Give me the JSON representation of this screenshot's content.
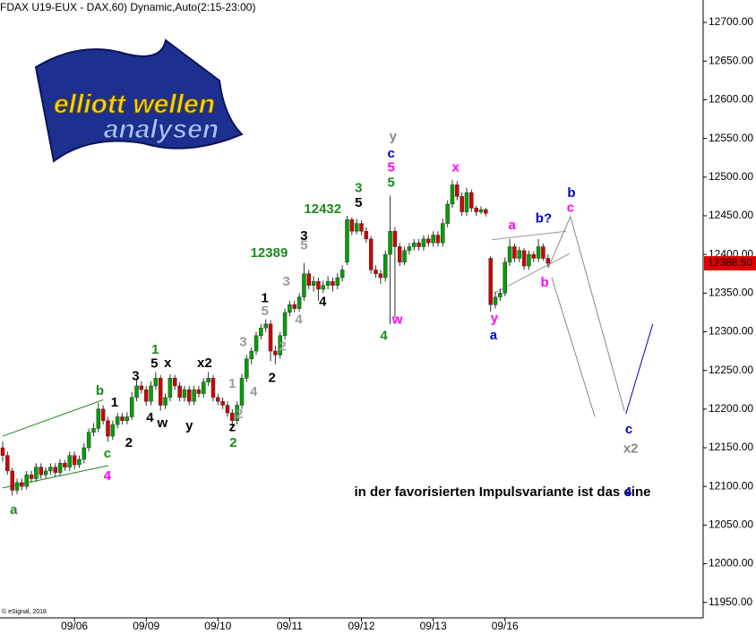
{
  "chart_data": {
    "type": "candlestick",
    "title": "FDAX U19-EUX - DAX,60) Dynamic,Auto(2:15-23:00)",
    "logo": [
      "elliott wellen",
      "analysen"
    ],
    "copyright": "© eSignal, 2018",
    "up_color": "#00a000",
    "down_color": "#d00000",
    "wick_color": "#333333",
    "ylim": [
      11930,
      12729
    ],
    "yticks": [
      {
        "value": 12700,
        "label": "12700.00"
      },
      {
        "value": 12650,
        "label": "12650.00"
      },
      {
        "value": 12600,
        "label": "12600.00"
      },
      {
        "value": 12550,
        "label": "12550.00"
      },
      {
        "value": 12500,
        "label": "12500.00"
      },
      {
        "value": 12450,
        "label": "12450.00"
      },
      {
        "value": 12400,
        "label": "12400.00"
      },
      {
        "value": 12350,
        "label": "12350.00"
      },
      {
        "value": 12300,
        "label": "12300.00"
      },
      {
        "value": 12250,
        "label": "12250.00"
      },
      {
        "value": 12200,
        "label": "12200.00"
      },
      {
        "value": 12150,
        "label": "12150.00"
      },
      {
        "value": 12100,
        "label": "12100.00"
      },
      {
        "value": 12050,
        "label": "12050.00"
      },
      {
        "value": 12000,
        "label": "12000.00"
      },
      {
        "value": 11950,
        "label": "11950.00"
      }
    ],
    "xlim": [
      0,
      147
    ],
    "xticks": [
      {
        "value": 15,
        "label": "09/06"
      },
      {
        "value": 30,
        "label": "09/09"
      },
      {
        "value": 45,
        "label": "09/10"
      },
      {
        "value": 60,
        "label": "09/11"
      },
      {
        "value": 75,
        "label": "09/12"
      },
      {
        "value": 90,
        "label": "09/13"
      },
      {
        "value": 105,
        "label": "09/16"
      }
    ],
    "last_price": {
      "value": 12388.5,
      "label": "12388.50",
      "color": "#e00000"
    },
    "candles": [
      [
        12150,
        12158,
        12132,
        12140
      ],
      [
        12140,
        12145,
        12115,
        12120
      ],
      [
        12120,
        12124,
        12088,
        12095
      ],
      [
        12095,
        12110,
        12090,
        12105
      ],
      [
        12105,
        12110,
        12095,
        12100
      ],
      [
        12100,
        12120,
        12096,
        12115
      ],
      [
        12115,
        12120,
        12105,
        12110
      ],
      [
        12110,
        12130,
        12106,
        12125
      ],
      [
        12125,
        12130,
        12110,
        12115
      ],
      [
        12115,
        12125,
        12110,
        12120
      ],
      [
        12120,
        12130,
        12115,
        12125
      ],
      [
        12125,
        12130,
        12113,
        12118
      ],
      [
        12118,
        12135,
        12114,
        12130
      ],
      [
        12130,
        12134,
        12120,
        12125
      ],
      [
        12125,
        12145,
        12120,
        12140
      ],
      [
        12140,
        12145,
        12122,
        12128
      ],
      [
        12128,
        12140,
        12124,
        12135
      ],
      [
        12135,
        12156,
        12130,
        12150
      ],
      [
        12150,
        12175,
        12145,
        12170
      ],
      [
        12170,
        12182,
        12165,
        12175
      ],
      [
        12175,
        12208,
        12170,
        12200
      ],
      [
        12200,
        12205,
        12180,
        12185
      ],
      [
        12185,
        12190,
        12158,
        12165
      ],
      [
        12165,
        12185,
        12160,
        12180
      ],
      [
        12180,
        12195,
        12175,
        12190
      ],
      [
        12190,
        12195,
        12180,
        12185
      ],
      [
        12185,
        12196,
        12180,
        12190
      ],
      [
        12190,
        12222,
        12186,
        12215
      ],
      [
        12215,
        12238,
        12210,
        12230
      ],
      [
        12230,
        12236,
        12220,
        12225
      ],
      [
        12225,
        12230,
        12204,
        12210
      ],
      [
        12210,
        12236,
        12205,
        12230
      ],
      [
        12230,
        12248,
        12225,
        12240
      ],
      [
        12240,
        12244,
        12198,
        12205
      ],
      [
        12205,
        12220,
        12200,
        12215
      ],
      [
        12215,
        12245,
        12210,
        12240
      ],
      [
        12240,
        12244,
        12225,
        12230
      ],
      [
        12230,
        12235,
        12210,
        12215
      ],
      [
        12215,
        12230,
        12210,
        12225
      ],
      [
        12225,
        12230,
        12205,
        12210
      ],
      [
        12210,
        12230,
        12205,
        12225
      ],
      [
        12225,
        12230,
        12215,
        12220
      ],
      [
        12220,
        12240,
        12215,
        12235
      ],
      [
        12235,
        12248,
        12230,
        12240
      ],
      [
        12240,
        12244,
        12210,
        12215
      ],
      [
        12215,
        12220,
        12205,
        12210
      ],
      [
        12210,
        12215,
        12200,
        12205
      ],
      [
        12205,
        12210,
        12190,
        12195
      ],
      [
        12195,
        12200,
        12178,
        12185
      ],
      [
        12185,
        12210,
        12180,
        12205
      ],
      [
        12205,
        12245,
        12200,
        12240
      ],
      [
        12240,
        12270,
        12235,
        12265
      ],
      [
        12265,
        12280,
        12258,
        12275
      ],
      [
        12275,
        12300,
        12270,
        12295
      ],
      [
        12295,
        12310,
        12290,
        12305
      ],
      [
        12305,
        12316,
        12300,
        12310
      ],
      [
        12310,
        12315,
        12262,
        12275
      ],
      [
        12275,
        12282,
        12258,
        12270
      ],
      [
        12270,
        12300,
        12265,
        12295
      ],
      [
        12295,
        12330,
        12290,
        12325
      ],
      [
        12325,
        12340,
        12320,
        12335
      ],
      [
        12335,
        12340,
        12325,
        12330
      ],
      [
        12330,
        12350,
        12326,
        12345
      ],
      [
        12345,
        12389,
        12340,
        12375
      ],
      [
        12375,
        12380,
        12355,
        12360
      ],
      [
        12360,
        12372,
        12352,
        12365
      ],
      [
        12365,
        12370,
        12340,
        12355
      ],
      [
        12355,
        12366,
        12350,
        12360
      ],
      [
        12360,
        12372,
        12355,
        12365
      ],
      [
        12365,
        12370,
        12352,
        12360
      ],
      [
        12360,
        12376,
        12355,
        12370
      ],
      [
        12370,
        12386,
        12365,
        12380
      ],
      [
        12390,
        12450,
        12386,
        12445
      ],
      [
        12445,
        12448,
        12425,
        12430
      ],
      [
        12430,
        12446,
        12426,
        12440
      ],
      [
        12440,
        12444,
        12425,
        12430
      ],
      [
        12430,
        12435,
        12415,
        12420
      ],
      [
        12420,
        12424,
        12375,
        12380
      ],
      [
        12380,
        12386,
        12370,
        12375
      ],
      [
        12375,
        12380,
        12362,
        12370
      ],
      [
        12370,
        12405,
        12365,
        12400
      ],
      [
        12400,
        12476,
        12310,
        12430
      ],
      [
        12430,
        12435,
        12318,
        12410
      ],
      [
        12410,
        12415,
        12385,
        12390
      ],
      [
        12390,
        12410,
        12386,
        12405
      ],
      [
        12405,
        12415,
        12400,
        12410
      ],
      [
        12410,
        12420,
        12405,
        12415
      ],
      [
        12415,
        12420,
        12405,
        12410
      ],
      [
        12410,
        12425,
        12405,
        12420
      ],
      [
        12420,
        12425,
        12410,
        12415
      ],
      [
        12415,
        12430,
        12410,
        12425
      ],
      [
        12425,
        12430,
        12410,
        12415
      ],
      [
        12415,
        12446,
        12410,
        12440
      ],
      [
        12440,
        12470,
        12435,
        12465
      ],
      [
        12465,
        12496,
        12460,
        12490
      ],
      [
        12490,
        12495,
        12470,
        12475
      ],
      [
        12475,
        12480,
        12450,
        12455
      ],
      [
        12455,
        12486,
        12450,
        12480
      ],
      [
        12480,
        12484,
        12455,
        12460
      ],
      [
        12460,
        12463,
        12450,
        12455
      ],
      [
        12455,
        12462,
        12452,
        12458
      ],
      [
        12458,
        12460,
        12449,
        12453
      ],
      [
        12395,
        12398,
        12326,
        12335
      ],
      [
        12335,
        12352,
        12330,
        12345
      ],
      [
        12345,
        12356,
        12340,
        12350
      ],
      [
        12350,
        12396,
        12346,
        12390
      ],
      [
        12390,
        12420,
        12385,
        12410
      ],
      [
        12410,
        12414,
        12390,
        12395
      ],
      [
        12395,
        12410,
        12390,
        12405
      ],
      [
        12405,
        12408,
        12380,
        12385
      ],
      [
        12385,
        12405,
        12380,
        12400
      ],
      [
        12400,
        12404,
        12390,
        12395
      ],
      [
        12395,
        12420,
        12390,
        12410
      ],
      [
        12410,
        12414,
        12392,
        12395
      ],
      [
        12395,
        12400,
        12384,
        12388.5
      ]
    ],
    "lines": [
      {
        "color": "#1a8a1a",
        "points": [
          [
            0,
            12165
          ],
          [
            21,
            12212
          ]
        ]
      },
      {
        "color": "#1a8a1a",
        "points": [
          [
            0,
            12098
          ],
          [
            22.1,
            12127
          ]
        ]
      },
      {
        "color": "#999999",
        "points": [
          [
            102.2,
            12419
          ],
          [
            117.8,
            12430
          ]
        ]
      },
      {
        "color": "#999999",
        "points": [
          [
            102.8,
            12350
          ],
          [
            118.5,
            12401
          ]
        ]
      },
      {
        "color": "#888888",
        "points": [
          [
            114,
            12382
          ],
          [
            118.7,
            12449
          ],
          [
            130,
            12197
          ]
        ]
      },
      {
        "color": "#888888",
        "points": [
          [
            114.8,
            12370
          ],
          [
            123.8,
            12190
          ]
        ]
      },
      {
        "color": "#0000cc",
        "points": [
          [
            130.3,
            12194
          ],
          [
            135.9,
            12310
          ]
        ]
      }
    ],
    "annotations": [
      {
        "text": "a",
        "color": "#1a8a1a",
        "x": 2.3,
        "y": 12069
      },
      {
        "text": "b",
        "color": "#1a8a1a",
        "x": 20.3,
        "y": 12223
      },
      {
        "text": "c",
        "color": "#1a8a1a",
        "x": 21.9,
        "y": 12142
      },
      {
        "text": "4",
        "color": "#ff00ff",
        "x": 21.9,
        "y": 12113
      },
      {
        "text": "1",
        "color": "#000000",
        "x": 23.4,
        "y": 12208
      },
      {
        "text": "2",
        "color": "#000000",
        "x": 26.4,
        "y": 12156
      },
      {
        "text": "3",
        "color": "#000000",
        "x": 27.8,
        "y": 12242
      },
      {
        "text": "1",
        "color": "#1a8a1a",
        "x": 31.9,
        "y": 12276
      },
      {
        "text": "5",
        "color": "#000000",
        "x": 31.7,
        "y": 12258
      },
      {
        "text": "x",
        "color": "#000000",
        "x": 34.5,
        "y": 12259
      },
      {
        "text": "4",
        "color": "#000000",
        "x": 30.8,
        "y": 12188
      },
      {
        "text": "w",
        "color": "#000000",
        "x": 33.4,
        "y": 12181
      },
      {
        "text": "y",
        "color": "#000000",
        "x": 39,
        "y": 12178
      },
      {
        "text": "x2",
        "color": "#000000",
        "x": 42.2,
        "y": 12259
      },
      {
        "text": "z",
        "color": "#000000",
        "x": 48,
        "y": 12176
      },
      {
        "text": "2",
        "color": "#1a8a1a",
        "x": 48.2,
        "y": 12156
      },
      {
        "text": "1",
        "color": "#999999",
        "x": 48,
        "y": 12232
      },
      {
        "text": "2",
        "color": "#999999",
        "x": 49.5,
        "y": 12193
      },
      {
        "text": "3",
        "color": "#999999",
        "x": 50.3,
        "y": 12286
      },
      {
        "text": "4",
        "color": "#999999",
        "x": 52.5,
        "y": 12222
      },
      {
        "text": "5",
        "color": "#999999",
        "x": 54.8,
        "y": 12326
      },
      {
        "text": "1",
        "color": "#000000",
        "x": 54.8,
        "y": 12343
      },
      {
        "text": "2",
        "color": "#000000",
        "x": 56.3,
        "y": 12240
      },
      {
        "text": "2",
        "color": "#999999",
        "x": 58.5,
        "y": 12280
      },
      {
        "text": "3",
        "color": "#999999",
        "x": 59.3,
        "y": 12364
      },
      {
        "text": "4",
        "color": "#999999",
        "x": 61.9,
        "y": 12315
      },
      {
        "text": "5",
        "color": "#999999",
        "x": 63,
        "y": 12411
      },
      {
        "text": "3",
        "color": "#000000",
        "x": 63,
        "y": 12423
      },
      {
        "text": "4",
        "color": "#000000",
        "x": 66.9,
        "y": 12338
      },
      {
        "text": "12389",
        "color": "#1a8a1a",
        "x": 55.7,
        "y": 12401
      },
      {
        "text": "12432",
        "color": "#1a8a1a",
        "x": 66.9,
        "y": 12458
      },
      {
        "text": "3",
        "color": "#1a8a1a",
        "x": 74.4,
        "y": 12485
      },
      {
        "text": "5",
        "color": "#000000",
        "x": 74.4,
        "y": 12466
      },
      {
        "text": "y",
        "color": "#888888",
        "x": 81.6,
        "y": 12552,
        "big": true
      },
      {
        "text": "c",
        "color": "#0000cc",
        "x": 81.2,
        "y": 12530
      },
      {
        "text": "5",
        "color": "#ff00ff",
        "x": 81.2,
        "y": 12512
      },
      {
        "text": "5",
        "color": "#1a8a1a",
        "x": 81.2,
        "y": 12492
      },
      {
        "text": "w",
        "color": "#ff00ff",
        "x": 82.5,
        "y": 12315
      },
      {
        "text": "4",
        "color": "#1a8a1a",
        "x": 79.7,
        "y": 12294
      },
      {
        "text": "x",
        "color": "#ff00ff",
        "x": 94.7,
        "y": 12512
      },
      {
        "text": "a",
        "color": "#ff00ff",
        "x": 106.5,
        "y": 12437
      },
      {
        "text": "b?",
        "color": "#0000cc",
        "x": 113.1,
        "y": 12446
      },
      {
        "text": "b",
        "color": "#0000cc",
        "x": 118.9,
        "y": 12479
      },
      {
        "text": "c",
        "color": "#ff00ff",
        "x": 118.7,
        "y": 12460
      },
      {
        "text": "b",
        "color": "#ff00ff",
        "x": 113.3,
        "y": 12363
      },
      {
        "text": "y",
        "color": "#ff00ff",
        "x": 102.8,
        "y": 12317
      },
      {
        "text": "a",
        "color": "#0000cc",
        "x": 102.6,
        "y": 12295
      },
      {
        "text": "c",
        "color": "#0000cc",
        "x": 130.9,
        "y": 12173
      },
      {
        "text": "x2",
        "color": "#888888",
        "x": 131.3,
        "y": 12148,
        "big": true
      },
      {
        "text": "in der favorisierten Impulsvariante ist das eine",
        "color": "#000000",
        "x": 73.5,
        "y": 12092,
        "anchor": "start"
      },
      {
        "text": "4",
        "color": "#0000cc",
        "x": 130.7,
        "y": 12092,
        "big": true
      }
    ]
  }
}
